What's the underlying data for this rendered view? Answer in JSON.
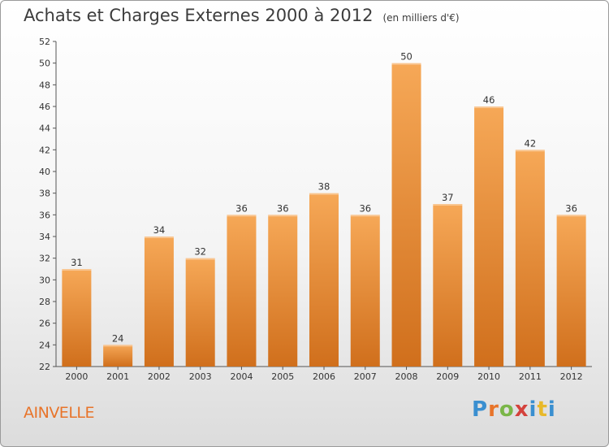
{
  "header": {
    "title": "Achats et Charges Externes 2000 à 2012",
    "subtitle": "(en milliers d'€)"
  },
  "footer": {
    "commune": "AINVELLE",
    "logo": [
      "P",
      "r",
      "o",
      "x",
      "i",
      "t",
      "i"
    ]
  },
  "colors": {
    "bar_top": "#f6a857",
    "bar_bottom": "#d06f1c",
    "commune_text": "#e8742a"
  },
  "chart_data": {
    "type": "bar",
    "title": "Achats et Charges Externes 2000 à 2012",
    "subtitle": "(en milliers d'€)",
    "categories": [
      "2000",
      "2001",
      "2002",
      "2003",
      "2004",
      "2005",
      "2006",
      "2007",
      "2008",
      "2009",
      "2010",
      "2011",
      "2012"
    ],
    "values": [
      31,
      24,
      34,
      32,
      36,
      36,
      38,
      36,
      50,
      37,
      46,
      42,
      36
    ],
    "ylim": [
      22,
      52
    ],
    "yticks": [
      22,
      24,
      26,
      28,
      30,
      32,
      34,
      36,
      38,
      40,
      42,
      44,
      46,
      48,
      50,
      52
    ],
    "grid": false,
    "data_labels": true
  }
}
